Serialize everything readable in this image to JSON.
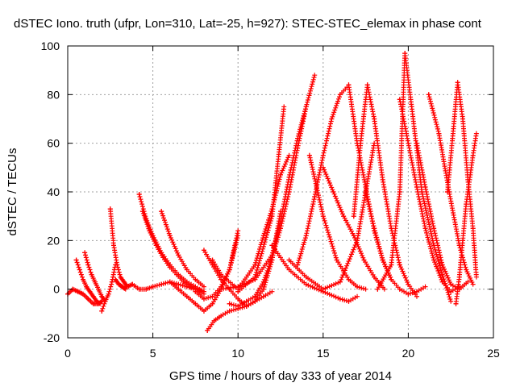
{
  "chart_data": {
    "type": "scatter",
    "title": "dSTEC Iono. truth (ufpr, Lon=310, Lat=-25, h=927): STEC-STEC_elemax in phase cont",
    "xlabel": "GPS time / hours of day 333 of year 2014",
    "ylabel": "dSTEC  / TECUs",
    "xlim": [
      0,
      25
    ],
    "ylim": [
      -20,
      100
    ],
    "xticks": [
      "0",
      "5",
      "10",
      "15",
      "20",
      "25"
    ],
    "yticks": [
      "-20",
      "0",
      "20",
      "40",
      "60",
      "80",
      "100"
    ],
    "grid": true,
    "marker": "plus",
    "color": "#ff0000",
    "series": [
      {
        "x": [
          0.0,
          0.3,
          0.6,
          0.9,
          1.2,
          1.5,
          1.8,
          2.0
        ],
        "y": [
          -2,
          0,
          -1,
          -2,
          -4,
          -6,
          -6,
          -5
        ]
      },
      {
        "x": [
          0.5,
          0.7,
          0.9,
          1.1,
          1.3,
          1.5,
          1.7,
          1.9
        ],
        "y": [
          12,
          8,
          4,
          1,
          -1,
          -3,
          -5,
          -6
        ]
      },
      {
        "x": [
          1.0,
          1.2,
          1.4,
          1.6,
          1.8,
          2.0,
          2.2
        ],
        "y": [
          15,
          10,
          6,
          3,
          0,
          -3,
          -5
        ]
      },
      {
        "x": [
          2.0,
          2.2,
          2.4,
          2.6,
          2.8
        ],
        "y": [
          -9,
          -5,
          -2,
          3,
          10
        ]
      },
      {
        "x": [
          2.5,
          2.7,
          2.9,
          3.1,
          3.3,
          3.5,
          3.8,
          4.2,
          4.6,
          5.0,
          5.5,
          6.0,
          6.5,
          7.0,
          7.5,
          8.0
        ],
        "y": [
          33,
          18,
          10,
          5,
          3,
          1,
          2,
          0,
          0,
          1,
          2,
          3,
          2,
          1,
          0,
          -2
        ]
      },
      {
        "x": [
          2.8,
          3.0,
          3.2,
          3.4
        ],
        "y": [
          4,
          2,
          1,
          0
        ]
      },
      {
        "x": [
          4.2,
          4.6,
          5.0,
          5.5,
          6.0,
          6.5,
          7.0,
          7.5,
          8.0
        ],
        "y": [
          39,
          29,
          22,
          15,
          10,
          6,
          3,
          1,
          -1
        ]
      },
      {
        "x": [
          4.4,
          4.8,
          5.2,
          5.6,
          6.0,
          6.4,
          6.8,
          7.2,
          7.6,
          8.0
        ],
        "y": [
          32,
          24,
          18,
          13,
          9,
          6,
          3,
          1,
          0,
          -1
        ]
      },
      {
        "x": [
          5.5,
          6.0,
          6.5,
          7.0,
          7.5,
          8.0
        ],
        "y": [
          32,
          22,
          14,
          8,
          4,
          1
        ]
      },
      {
        "x": [
          6.0,
          6.5,
          7.0,
          7.5,
          8.0,
          8.5,
          9.0,
          9.5,
          10.0
        ],
        "y": [
          3,
          0,
          -3,
          -6,
          -9,
          -6,
          0,
          8,
          24
        ]
      },
      {
        "x": [
          7.5,
          8.0,
          8.5,
          9.0,
          9.5,
          10.0
        ],
        "y": [
          -1,
          -4,
          -3,
          1,
          8,
          22
        ]
      },
      {
        "x": [
          8.2,
          8.6,
          9.0,
          9.5,
          10.0,
          10.5,
          11.0,
          11.5,
          12.0
        ],
        "y": [
          -17,
          -13,
          -11,
          -9,
          -8,
          -7,
          -5,
          -3,
          -1
        ]
      },
      {
        "x": [
          8.0,
          8.5,
          9.0,
          9.5,
          10.0,
          10.5,
          11.0,
          11.5,
          12.0,
          12.5
        ],
        "y": [
          16,
          10,
          4,
          0,
          -4,
          -7,
          -5,
          0,
          12,
          32
        ]
      },
      {
        "x": [
          9.5,
          10.0,
          10.5,
          11.0,
          11.5,
          12.0,
          12.5,
          13.0,
          13.5,
          14.0,
          14.5
        ],
        "y": [
          -6,
          -7,
          -5,
          -3,
          3,
          13,
          25,
          40,
          58,
          75,
          88
        ]
      },
      {
        "x": [
          8.5,
          9.0,
          10.0,
          11.0,
          11.5,
          12.0,
          12.5,
          13.0
        ],
        "y": [
          12,
          6,
          0,
          10,
          22,
          33,
          47,
          55
        ]
      },
      {
        "x": [
          9.0,
          10.0,
          11.0,
          12.0,
          12.5,
          13.0,
          13.5,
          14.0
        ],
        "y": [
          0,
          1,
          4,
          14,
          28,
          46,
          62,
          75
        ]
      },
      {
        "x": [
          10.0,
          11.0,
          12.0,
          12.7
        ],
        "y": [
          -1,
          5,
          30,
          75
        ]
      },
      {
        "x": [
          12.0,
          13.0,
          14.0,
          15.0,
          16.0,
          16.5,
          17.0
        ],
        "y": [
          18,
          8,
          2,
          -1,
          -4,
          -5,
          -3
        ]
      },
      {
        "x": [
          13.0,
          14.0,
          15.0,
          16.0,
          17.0,
          18.0
        ],
        "y": [
          12,
          5,
          0,
          3,
          20,
          60
        ]
      },
      {
        "x": [
          13.5,
          14.0,
          14.5,
          15.0,
          15.5,
          16.0,
          16.4
        ],
        "y": [
          10,
          22,
          38,
          55,
          70,
          80,
          83
        ]
      },
      {
        "x": [
          14.2,
          15.0,
          15.8,
          16.5,
          17.0,
          17.5
        ],
        "y": [
          55,
          30,
          12,
          4,
          1,
          0
        ]
      },
      {
        "x": [
          15.0,
          15.6,
          16.2,
          16.8,
          17.4,
          18.0,
          18.6
        ],
        "y": [
          50,
          40,
          30,
          22,
          12,
          5,
          0
        ]
      },
      {
        "x": [
          16.5,
          17.0,
          17.5,
          18.0,
          18.5,
          19.0
        ],
        "y": [
          84,
          60,
          42,
          24,
          12,
          4
        ]
      },
      {
        "x": [
          16.8,
          17.2,
          17.6,
          18.0,
          18.5,
          19.0,
          19.5,
          20.0,
          20.5
        ],
        "y": [
          30,
          60,
          84,
          70,
          45,
          25,
          10,
          2,
          -3
        ]
      },
      {
        "x": [
          17.5,
          18.0,
          18.5,
          19.0,
          19.5,
          20.0,
          20.5,
          21.0
        ],
        "y": [
          40,
          25,
          12,
          4,
          0,
          -2,
          -1,
          1
        ]
      },
      {
        "x": [
          18.2,
          19.0,
          19.5,
          19.8,
          20.2,
          20.8,
          21.5,
          22.0,
          22.5
        ],
        "y": [
          0,
          10,
          40,
          97,
          75,
          40,
          18,
          6,
          -5
        ]
      },
      {
        "x": [
          19.5,
          20.0,
          20.5,
          21.0,
          21.5,
          22.0,
          22.5,
          23.0
        ],
        "y": [
          78,
          60,
          42,
          25,
          12,
          3,
          -1,
          1
        ]
      },
      {
        "x": [
          20.5,
          21.0,
          21.5,
          22.0,
          22.5,
          23.0,
          23.5
        ],
        "y": [
          60,
          42,
          25,
          10,
          2,
          0,
          3
        ]
      },
      {
        "x": [
          21.2,
          21.8,
          22.4,
          23.0,
          23.4,
          23.8
        ],
        "y": [
          80,
          64,
          40,
          18,
          8,
          2
        ]
      },
      {
        "x": [
          22.3,
          22.6,
          22.9,
          23.2,
          23.5,
          23.8,
          24.0
        ],
        "y": [
          40,
          62,
          85,
          70,
          45,
          25,
          5
        ]
      },
      {
        "x": [
          22.8,
          23.0,
          23.2,
          23.4,
          23.6,
          23.8,
          24.0
        ],
        "y": [
          -6,
          5,
          20,
          35,
          45,
          55,
          64
        ]
      }
    ]
  }
}
